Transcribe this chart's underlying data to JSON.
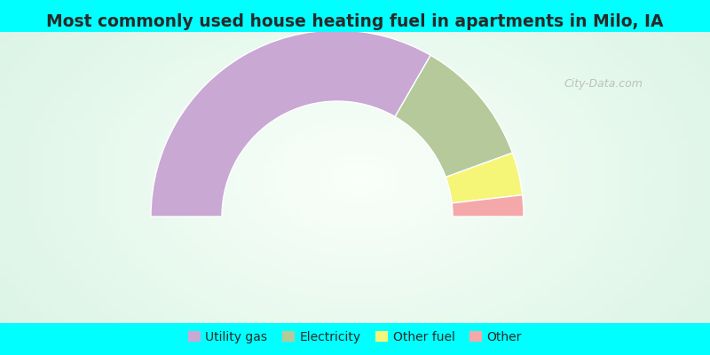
{
  "title": "Most commonly used house heating fuel in apartments in Milo, IA",
  "segments": [
    {
      "label": "Utility gas",
      "value": 66.7,
      "color": "#c9a8d4"
    },
    {
      "label": "Electricity",
      "value": 22.2,
      "color": "#b5c99a"
    },
    {
      "label": "Other fuel",
      "value": 7.4,
      "color": "#f5f577"
    },
    {
      "label": "Other",
      "value": 3.7,
      "color": "#f5a8aa"
    }
  ],
  "background_cyan": "#00ffff",
  "title_color": "#2a2a2a",
  "title_fontsize": 13.5,
  "legend_fontsize": 10,
  "outer_r": 1.0,
  "inner_r": 0.62,
  "gradient_colors": [
    "#d8f0e8",
    "#eaf8f2",
    "#f5fdfb",
    "#eaf8f2",
    "#d8f0e8"
  ],
  "watermark": "City-Data.com"
}
